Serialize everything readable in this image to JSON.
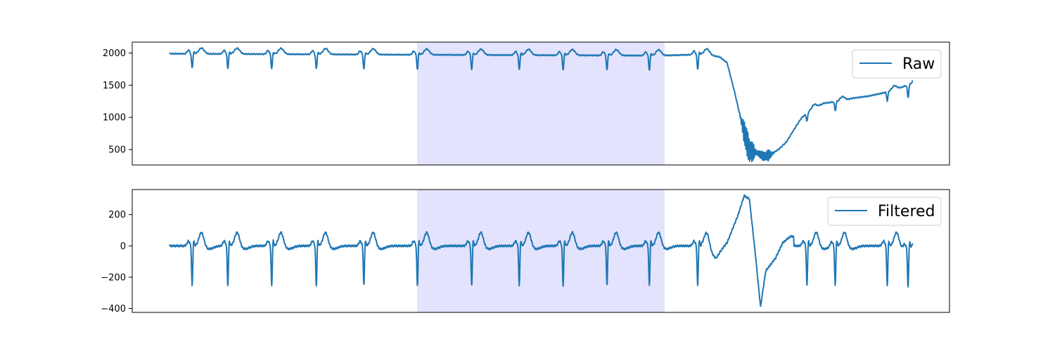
{
  "chart_data": [
    {
      "type": "line",
      "panel": "top",
      "series": [
        {
          "name": "Raw",
          "color": "#1f77b4"
        }
      ],
      "x_range": [
        0,
        100
      ],
      "ylim": [
        260,
        2170
      ],
      "yticks": [
        500,
        1000,
        1500,
        2000
      ],
      "ytick_labels": [
        "500",
        "1000",
        "1500",
        "2000"
      ],
      "highlight": {
        "x_start": 33.3,
        "x_end": 66.6,
        "color": "#e3e3fd"
      },
      "legend": "top-right",
      "beats": [
        3.0,
        7.8,
        13.7,
        19.7,
        26.1,
        33.3,
        40.6,
        47.0,
        52.9,
        58.8,
        64.5,
        71.0
      ],
      "baseline": [
        [
          0,
          1990
        ],
        [
          30,
          1975
        ],
        [
          66,
          1960
        ],
        [
          72,
          1980
        ],
        [
          74,
          1940
        ],
        [
          75,
          1850
        ],
        [
          76,
          1400
        ],
        [
          77,
          900
        ],
        [
          78,
          480
        ],
        [
          79,
          450
        ],
        [
          80,
          390
        ],
        [
          81,
          430
        ],
        [
          82,
          510
        ],
        [
          83,
          620
        ],
        [
          84,
          810
        ],
        [
          85,
          990
        ],
        [
          86,
          1090
        ],
        [
          87,
          1160
        ],
        [
          88,
          1220
        ],
        [
          90,
          1250
        ],
        [
          92,
          1300
        ],
        [
          94,
          1330
        ],
        [
          96,
          1380
        ],
        [
          98,
          1450
        ],
        [
          100,
          1530
        ]
      ],
      "post_beats": [
        [
          85.7,
          90.0
        ],
        [
          89.5,
          100.0
        ],
        [
          96.5,
          100.0
        ],
        [
          99.3,
          140.0
        ]
      ],
      "noise": [
        [
          77.5,
          200
        ],
        [
          78.3,
          150
        ],
        [
          79.6,
          70
        ],
        [
          80.5,
          80
        ]
      ]
    },
    {
      "type": "line",
      "panel": "bottom",
      "series": [
        {
          "name": "Filtered",
          "color": "#1f77b4"
        }
      ],
      "x_range": [
        0,
        100
      ],
      "ylim": [
        -425,
        360
      ],
      "yticks": [
        -400,
        -200,
        0,
        200
      ],
      "ytick_labels": [
        "−400",
        "−200",
        "0",
        "200"
      ],
      "highlight": {
        "x_start": 33.3,
        "x_end": 66.6,
        "color": "#e3e3fd"
      },
      "legend": "top-right",
      "beats": [
        3.0,
        7.8,
        13.7,
        19.7,
        26.1,
        33.3,
        40.6,
        47.0,
        52.9,
        58.8,
        64.5,
        71.0,
        85.7,
        89.5,
        96.5,
        99.3
      ],
      "artifact": [
        [
          72,
          10
        ],
        [
          73.5,
          -60
        ],
        [
          75,
          20
        ],
        [
          76.5,
          200
        ],
        [
          77.3,
          320
        ],
        [
          78,
          300
        ],
        [
          78.8,
          -50
        ],
        [
          79.5,
          -390
        ],
        [
          80.2,
          -160
        ],
        [
          81.5,
          -80
        ],
        [
          82.5,
          20
        ],
        [
          83.5,
          60
        ]
      ]
    }
  ],
  "legend_entries": {
    "top": "Raw",
    "bottom": "Filtered"
  }
}
